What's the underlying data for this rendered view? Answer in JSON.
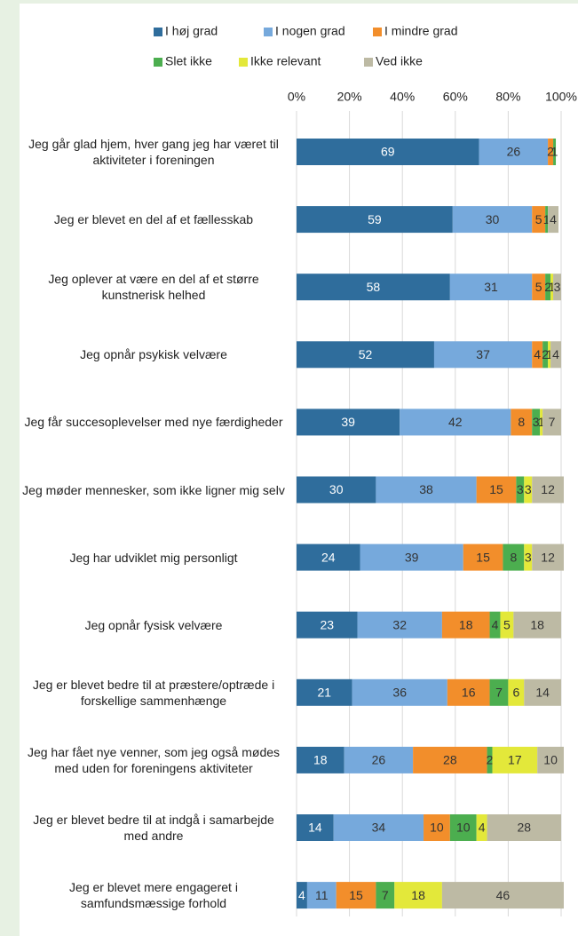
{
  "chart_data": {
    "type": "stacked_barh",
    "categories": [
      "Jeg går glad hjem, hver gang jeg har været til aktiviteter i foreningen",
      "Jeg er blevet en del af et fællesskab",
      "Jeg oplever at være en del af et større kunstnerisk helhed",
      "Jeg opnår psykisk velvære",
      "Jeg får succesoplevelser med nye færdigheder",
      "Jeg møder mennesker, som ikke ligner mig selv",
      "Jeg har udviklet mig personligt",
      "Jeg opnår fysisk velvære",
      "Jeg er blevet bedre til at præstere/optræde i forskellige sammenhænge",
      "Jeg har fået nye venner, som jeg også mødes med uden for foreningens aktiviteter",
      "Jeg er blevet bedre til at indgå i samarbejde med andre",
      "Jeg er blevet mere engageret i samfundsmæssige forhold"
    ],
    "series": [
      {
        "name": "I høj grad",
        "color": "#2f6d9c",
        "values": [
          69,
          59,
          58,
          52,
          39,
          30,
          24,
          23,
          21,
          18,
          14,
          4
        ]
      },
      {
        "name": "I nogen grad",
        "color": "#76a9dc",
        "values": [
          26,
          30,
          31,
          37,
          42,
          38,
          39,
          32,
          36,
          26,
          34,
          11
        ]
      },
      {
        "name": "I mindre grad",
        "color": "#f28e2b",
        "values": [
          2,
          5,
          5,
          4,
          8,
          15,
          15,
          18,
          16,
          28,
          10,
          15
        ]
      },
      {
        "name": "Slet ikke",
        "color": "#4cae4f",
        "values": [
          1,
          1,
          2,
          2,
          3,
          3,
          8,
          4,
          7,
          2,
          10,
          7
        ]
      },
      {
        "name": "Ikke relevant",
        "color": "#e3e83a",
        "values": [
          null,
          null,
          1,
          1,
          1,
          3,
          3,
          5,
          6,
          17,
          4,
          18
        ]
      },
      {
        "name": "Ved ikke",
        "color": "#bdbaa4",
        "values": [
          null,
          4,
          3,
          4,
          7,
          12,
          12,
          18,
          14,
          10,
          28,
          46
        ]
      }
    ],
    "xlim": [
      0,
      100
    ],
    "xticks": [
      {
        "value": 0,
        "label": "0%"
      },
      {
        "value": 20,
        "label": "20%"
      },
      {
        "value": 40,
        "label": "40%"
      },
      {
        "value": 60,
        "label": "60%"
      },
      {
        "value": 80,
        "label": "80%"
      },
      {
        "value": 100,
        "label": "100%"
      }
    ],
    "grid": true
  }
}
